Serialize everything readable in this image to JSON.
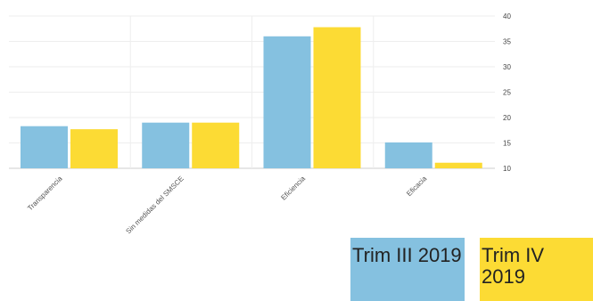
{
  "chart_data": {
    "type": "bar",
    "categories": [
      "Transparencia",
      "Sin medidas del SMSCE",
      "Eficiencia",
      "Eficacia"
    ],
    "series": [
      {
        "name": "Trim III 2019",
        "color": "#85c1e0",
        "values": [
          18.3,
          19.0,
          36.0,
          15.1
        ]
      },
      {
        "name": "Trim IV 2019",
        "color": "#fcdb34",
        "values": [
          17.7,
          19.0,
          37.8,
          11.1
        ]
      }
    ],
    "yticks": [
      10,
      15,
      20,
      25,
      30,
      35,
      40
    ],
    "ylim": [
      10,
      40
    ],
    "y_axis_position": "right",
    "grid": true,
    "legend_position": "bottom-right"
  }
}
